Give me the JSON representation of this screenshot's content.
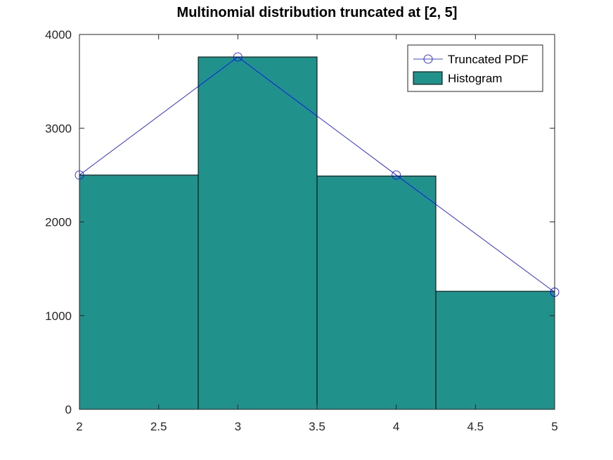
{
  "chart_data": {
    "type": "bar",
    "title": "Multinomial distribution truncated at [2, 5]",
    "xlabel": "",
    "ylabel": "",
    "xlim": [
      2,
      5
    ],
    "ylim": [
      0,
      4000
    ],
    "x_ticks": [
      2,
      2.5,
      3,
      3.5,
      4,
      4.5,
      5
    ],
    "x_tick_labels": [
      "2",
      "2.5",
      "3",
      "3.5",
      "4",
      "4.5",
      "5"
    ],
    "y_ticks": [
      0,
      1000,
      2000,
      3000,
      4000
    ],
    "y_tick_labels": [
      "0",
      "1000",
      "2000",
      "3000",
      "4000"
    ],
    "grid": false,
    "legend_position": "top-right",
    "histogram": {
      "name": "Histogram",
      "color": "#21918c",
      "bins": [
        {
          "x0": 2.0,
          "x1": 2.75,
          "value": 2500
        },
        {
          "x0": 2.75,
          "x1": 3.5,
          "value": 3760
        },
        {
          "x0": 3.5,
          "x1": 4.25,
          "value": 2490
        },
        {
          "x0": 4.25,
          "x1": 5.0,
          "value": 1260
        }
      ]
    },
    "line": {
      "name": "Truncated PDF",
      "color": "#0000ff",
      "marker": "circle",
      "x": [
        2,
        3,
        4,
        5
      ],
      "y": [
        2500,
        3760,
        2500,
        1250
      ]
    }
  }
}
